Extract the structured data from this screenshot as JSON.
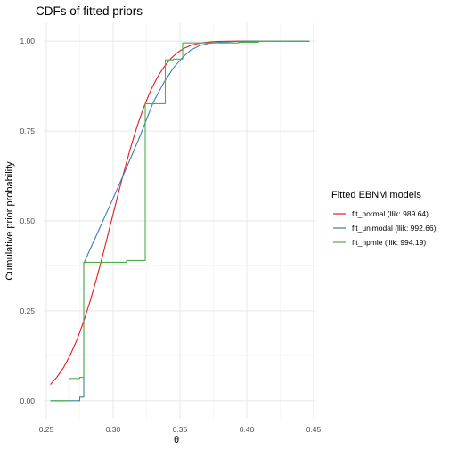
{
  "chart_data": {
    "type": "line",
    "title": "CDFs of fitted priors",
    "xlabel": "θ",
    "ylabel": "Cumulative prior probability",
    "xlim": [
      0.248,
      0.452
    ],
    "ylim": [
      -0.05,
      1.05
    ],
    "grid": true,
    "x_ticks": [
      0.25,
      0.3,
      0.35,
      0.4,
      0.45
    ],
    "x_tick_labels": [
      "0.25",
      "0.30",
      "0.35",
      "0.40",
      "0.45"
    ],
    "y_ticks": [
      0.0,
      0.25,
      0.5,
      0.75,
      1.0
    ],
    "y_tick_labels": [
      "0.00",
      "0.25",
      "0.50",
      "0.75",
      "1.00"
    ],
    "legend": {
      "title": "Fitted EBNM models",
      "placement": "right",
      "entries": [
        "fit_normal (llik: 989.64)",
        "fit_unimodal (llik: 992.66)",
        "fit_npmle (llik: 994.19)"
      ]
    },
    "series": [
      {
        "name": "fit_normal (llik: 989.64)",
        "color": "#e41a1c",
        "x": [
          0.253,
          0.258,
          0.263,
          0.268,
          0.273,
          0.278,
          0.283,
          0.288,
          0.293,
          0.298,
          0.303,
          0.308,
          0.313,
          0.318,
          0.323,
          0.328,
          0.333,
          0.338,
          0.343,
          0.348,
          0.353,
          0.358,
          0.363,
          0.368,
          0.373,
          0.378,
          0.383,
          0.388,
          0.393,
          0.398,
          0.405,
          0.415,
          0.425,
          0.435,
          0.447
        ],
        "y": [
          0.045,
          0.066,
          0.093,
          0.128,
          0.17,
          0.221,
          0.28,
          0.345,
          0.416,
          0.49,
          0.564,
          0.636,
          0.703,
          0.764,
          0.817,
          0.862,
          0.899,
          0.928,
          0.951,
          0.968,
          0.98,
          0.988,
          0.993,
          0.996,
          0.998,
          0.999,
          0.9995,
          0.9998,
          1.0,
          1.0,
          1.0,
          1.0,
          1.0,
          1.0,
          1.0
        ]
      },
      {
        "name": "fit_unimodal (llik: 992.66)",
        "color": "#377eb8",
        "x": [
          0.253,
          0.275,
          0.275,
          0.278,
          0.278,
          0.3,
          0.31,
          0.32,
          0.33,
          0.338,
          0.345,
          0.352,
          0.358,
          0.365,
          0.372,
          0.38,
          0.39,
          0.4,
          0.42,
          0.447
        ],
        "y": [
          0.0,
          0.0,
          0.01,
          0.01,
          0.382,
          0.563,
          0.648,
          0.735,
          0.83,
          0.885,
          0.925,
          0.955,
          0.975,
          0.988,
          0.994,
          0.997,
          0.999,
          1.0,
          1.0,
          1.0
        ]
      },
      {
        "name": "fit_npmle (llik: 994.19)",
        "color": "#4daf4a",
        "x": [
          0.253,
          0.267,
          0.267,
          0.275,
          0.275,
          0.278,
          0.278,
          0.31,
          0.31,
          0.324,
          0.324,
          0.339,
          0.339,
          0.345,
          0.345,
          0.352,
          0.352,
          0.394,
          0.394,
          0.409,
          0.409,
          0.447
        ],
        "y": [
          0.0,
          0.0,
          0.062,
          0.062,
          0.065,
          0.065,
          0.385,
          0.385,
          0.39,
          0.39,
          0.826,
          0.826,
          0.948,
          0.948,
          0.95,
          0.95,
          0.995,
          0.995,
          0.997,
          0.997,
          1.0,
          1.0
        ]
      }
    ]
  }
}
